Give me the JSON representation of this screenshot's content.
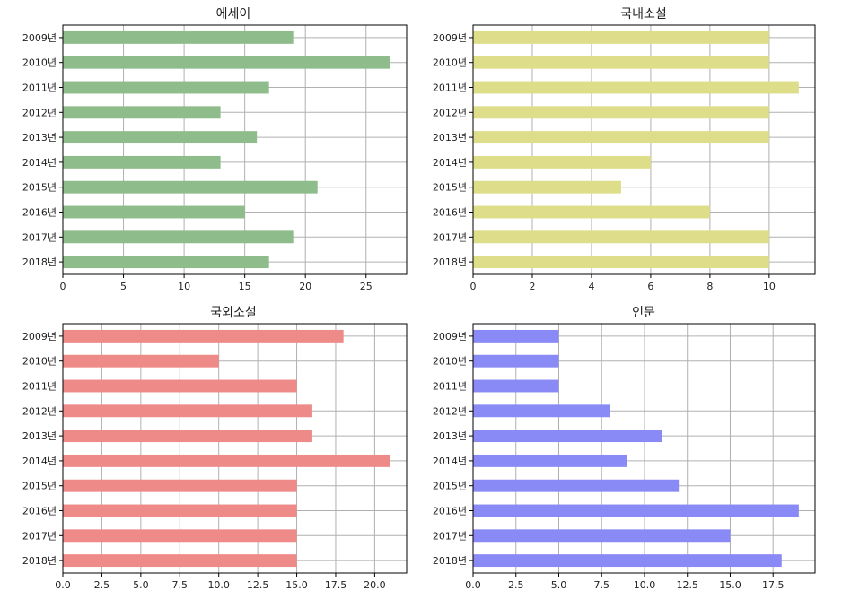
{
  "chart_data": [
    {
      "type": "bar",
      "orientation": "horizontal",
      "title": "에세이",
      "categories": [
        "2009년",
        "2010년",
        "2011년",
        "2012년",
        "2013년",
        "2014년",
        "2015년",
        "2016년",
        "2017년",
        "2018년"
      ],
      "values": [
        19,
        27,
        17,
        13,
        16,
        13,
        21,
        15,
        19,
        17
      ],
      "xlim": [
        0,
        28.35
      ],
      "xticks": [
        0,
        5,
        10,
        15,
        20,
        25
      ],
      "xtick_labels": [
        "0",
        "5",
        "10",
        "15",
        "20",
        "25"
      ],
      "color": "#8fbc8b",
      "grid": true
    },
    {
      "type": "bar",
      "orientation": "horizontal",
      "title": "국내소설",
      "categories": [
        "2009년",
        "2010년",
        "2011년",
        "2012년",
        "2013년",
        "2014년",
        "2015년",
        "2016년",
        "2017년",
        "2018년"
      ],
      "values": [
        10,
        10,
        11,
        10,
        10,
        6,
        5,
        8,
        10,
        10
      ],
      "xlim": [
        0,
        11.55
      ],
      "xticks": [
        0,
        2,
        4,
        6,
        8,
        10
      ],
      "xtick_labels": [
        "0",
        "2",
        "4",
        "6",
        "8",
        "10"
      ],
      "color": "#dedd8a",
      "grid": true
    },
    {
      "type": "bar",
      "orientation": "horizontal",
      "title": "국외소설",
      "categories": [
        "2009년",
        "2010년",
        "2011년",
        "2012년",
        "2013년",
        "2014년",
        "2015년",
        "2016년",
        "2017년",
        "2018년"
      ],
      "values": [
        18,
        10,
        15,
        16,
        16,
        21,
        15,
        15,
        15,
        15
      ],
      "xlim": [
        0,
        22.05
      ],
      "xticks": [
        0,
        2.5,
        5,
        7.5,
        10,
        12.5,
        15,
        17.5,
        20
      ],
      "xtick_labels": [
        "0.0",
        "2.5",
        "5.0",
        "7.5",
        "10.0",
        "12.5",
        "15.0",
        "17.5",
        "20.0"
      ],
      "color": "#ee8a88",
      "grid": true
    },
    {
      "type": "bar",
      "orientation": "horizontal",
      "title": "인문",
      "categories": [
        "2009년",
        "2010년",
        "2011년",
        "2012년",
        "2013년",
        "2014년",
        "2015년",
        "2016년",
        "2017년",
        "2018년"
      ],
      "values": [
        5,
        5,
        5,
        8,
        11,
        9,
        12,
        19,
        15,
        18
      ],
      "xlim": [
        0,
        19.95
      ],
      "xticks": [
        0,
        2.5,
        5,
        7.5,
        10,
        12.5,
        15,
        17.5
      ],
      "xtick_labels": [
        "0.0",
        "2.5",
        "5.0",
        "7.5",
        "10.0",
        "12.5",
        "15.0",
        "17.5"
      ],
      "color": "#8a8af6",
      "grid": true
    }
  ]
}
